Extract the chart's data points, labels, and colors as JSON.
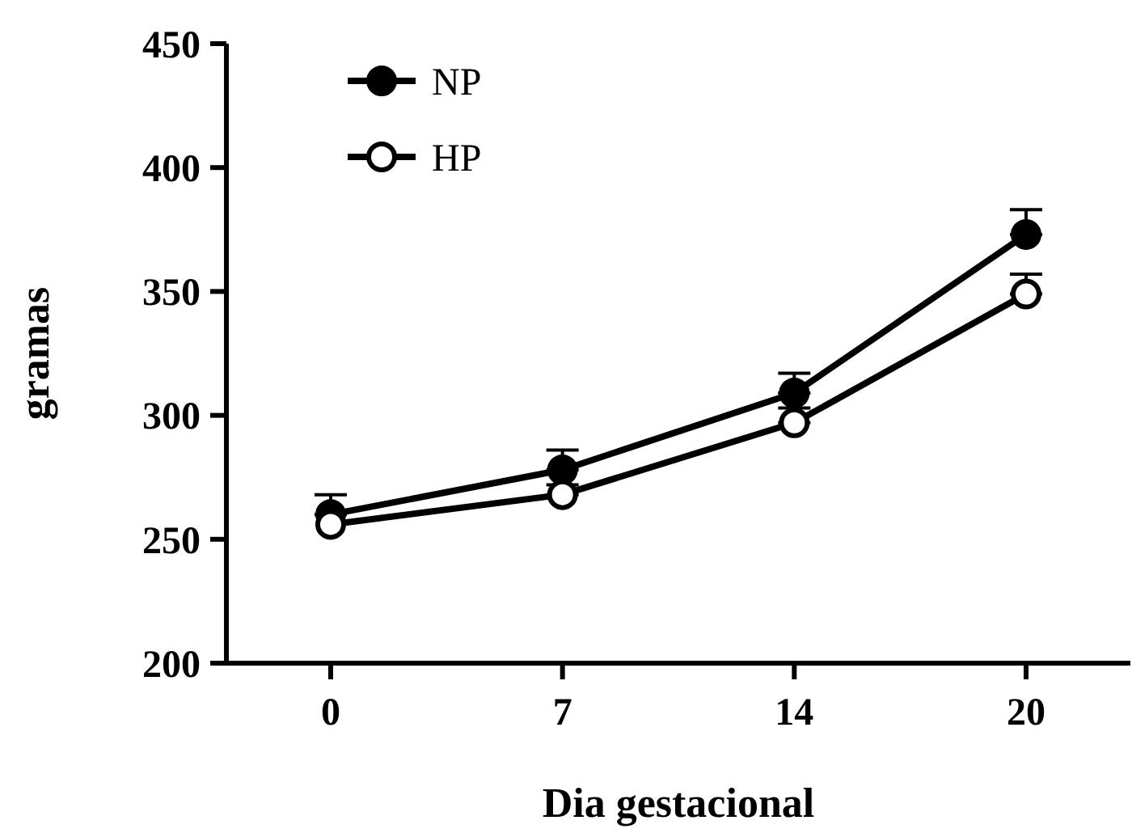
{
  "chart_data": {
    "type": "line",
    "xlabel": "Dia gestacional",
    "ylabel": "gramas",
    "categories": [
      "0",
      "7",
      "14",
      "20"
    ],
    "ylim": [
      200,
      450
    ],
    "yticks": [
      200,
      250,
      300,
      350,
      400,
      450
    ],
    "grid": false,
    "legend": "top left",
    "marker": "circle",
    "line_style": "solid",
    "series": [
      {
        "name": "NP",
        "color": "#000000",
        "values": [
          260,
          278,
          309,
          373
        ],
        "errors": [
          [
            260,
            268
          ],
          [
            278,
            286
          ],
          [
            309,
            317
          ],
          [
            373,
            383
          ]
        ]
      },
      {
        "name": "HP",
        "color": "#000000",
        "values": [
          256,
          268,
          297,
          349
        ],
        "errors": [
          null,
          [
            268,
            272
          ],
          [
            297,
            303
          ],
          [
            349,
            357
          ]
        ]
      }
    ]
  }
}
